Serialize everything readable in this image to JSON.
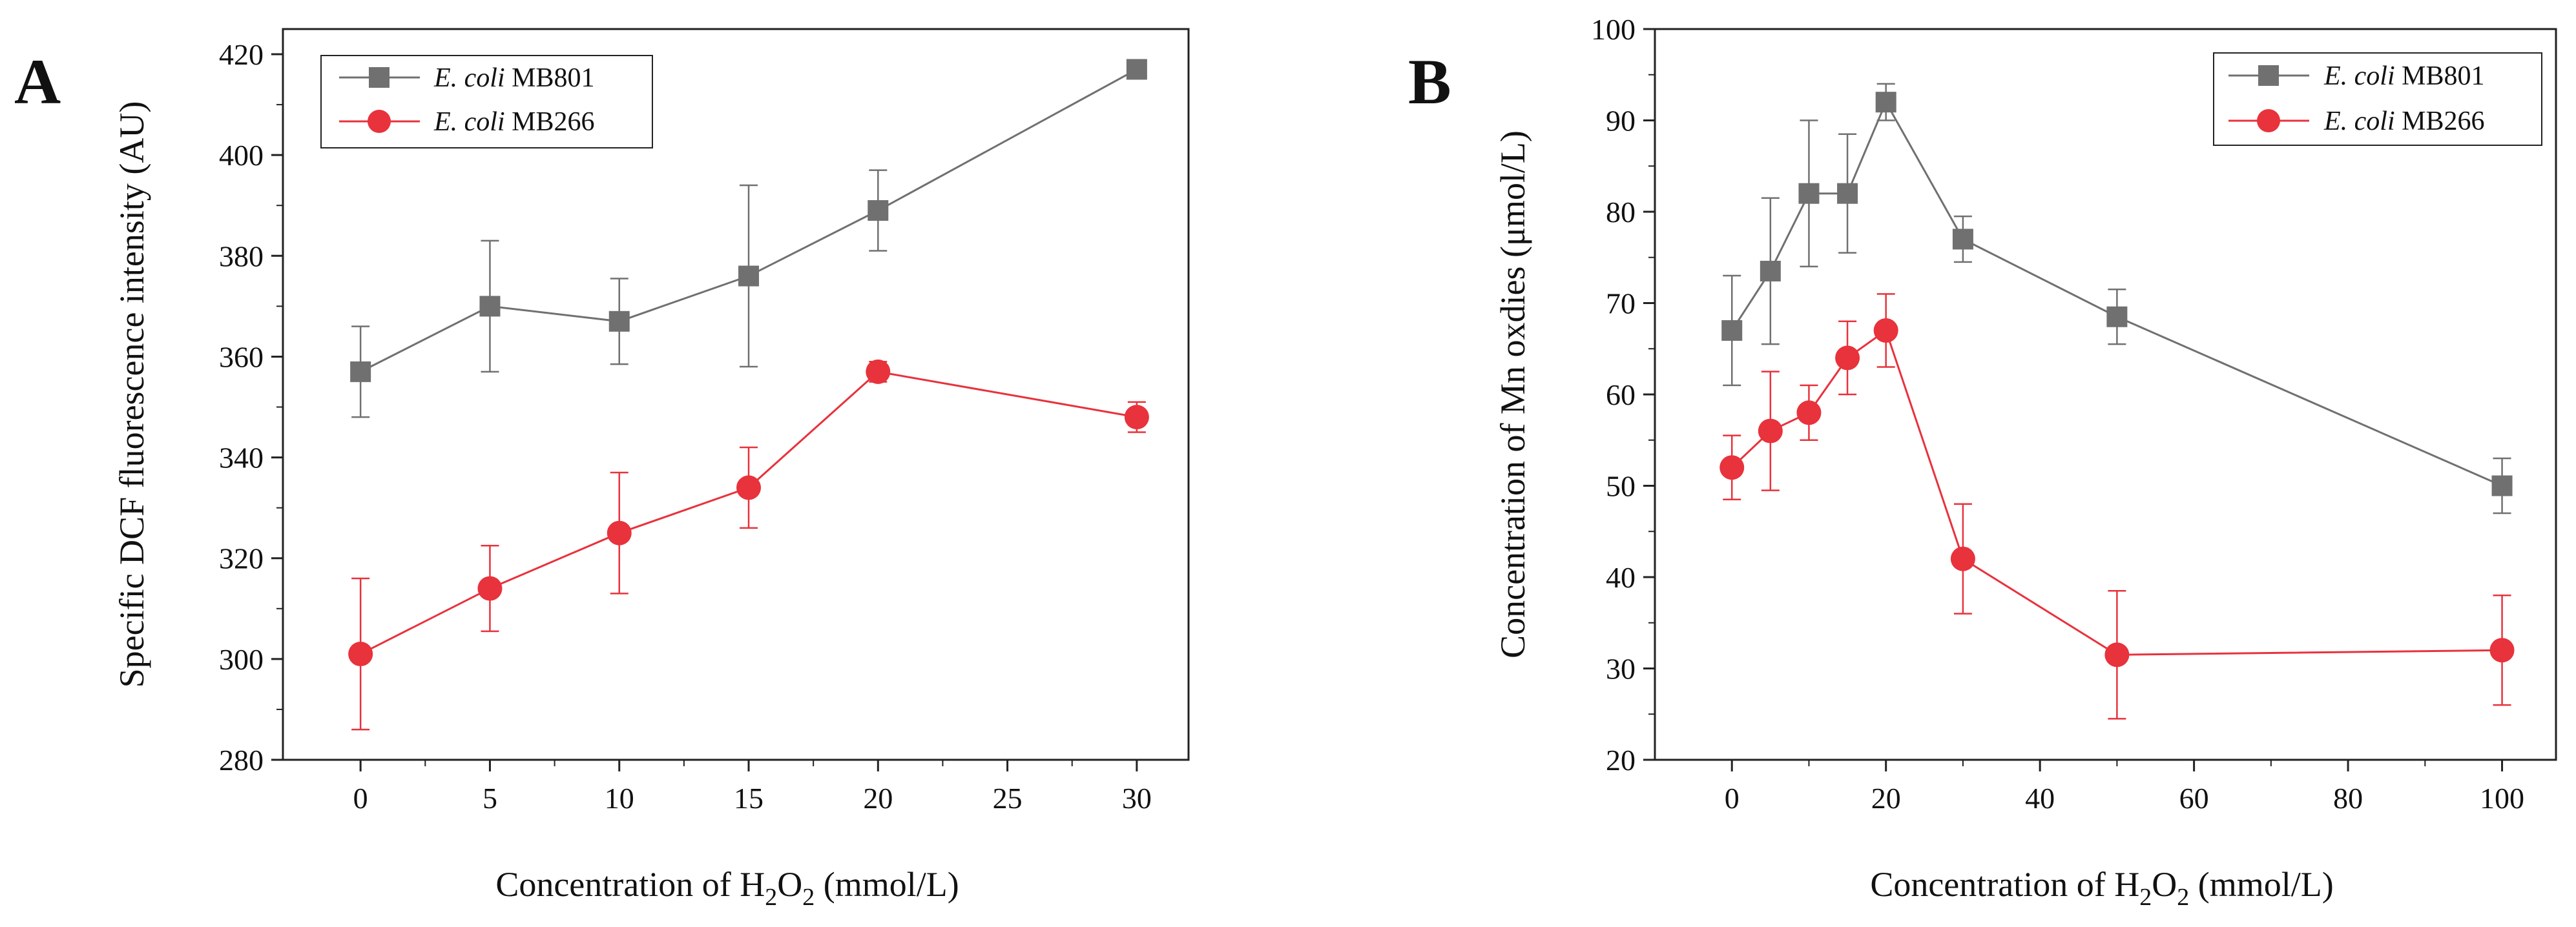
{
  "figure": {
    "panels": [
      "A",
      "B"
    ]
  },
  "chart_data": [
    {
      "type": "line",
      "panel_label": "A",
      "xlabel_prefix": "Concentration of H",
      "xlabel_sub1": "2",
      "xlabel_mid": "O",
      "xlabel_sub2": "2",
      "xlabel_suffix": " (mmol/L)",
      "ylabel": "Specific DCF fluorescence intensity (AU)",
      "xlim": [
        -3,
        32
      ],
      "ylim": [
        280,
        425
      ],
      "xticks": [
        0,
        5,
        10,
        15,
        20,
        25,
        30
      ],
      "yticks": [
        280,
        300,
        320,
        340,
        360,
        380,
        400,
        420
      ],
      "grid": false,
      "legend_position": "top-left",
      "series": [
        {
          "name_italic": "E. coli",
          "name_rest": " MB801",
          "color": "#707070",
          "marker": "square",
          "x": [
            0,
            5,
            10,
            15,
            20,
            30
          ],
          "y": [
            357,
            370,
            367,
            376,
            389,
            417
          ],
          "err": [
            9,
            13,
            8.5,
            18,
            8,
            0
          ]
        },
        {
          "name_italic": "E. coli",
          "name_rest": " MB266",
          "color": "#e8323c",
          "marker": "circle",
          "x": [
            0,
            5,
            10,
            15,
            20,
            30
          ],
          "y": [
            301,
            314,
            325,
            334,
            357,
            348
          ],
          "err": [
            15,
            8.5,
            12,
            8,
            2,
            3
          ]
        }
      ]
    },
    {
      "type": "line",
      "panel_label": "B",
      "xlabel_prefix": "Concentration of H",
      "xlabel_sub1": "2",
      "xlabel_mid": "O",
      "xlabel_sub2": "2",
      "xlabel_suffix": " (mmol/L)",
      "ylabel": "Concentration of Mn oxdies (μmol/L)",
      "xlim": [
        -10,
        107
      ],
      "ylim": [
        20,
        100
      ],
      "xticks": [
        0,
        20,
        40,
        60,
        80,
        100
      ],
      "yticks": [
        20,
        30,
        40,
        50,
        60,
        70,
        80,
        90,
        100
      ],
      "grid": false,
      "legend_position": "top-right",
      "series": [
        {
          "name_italic": "E. coli",
          "name_rest": " MB801",
          "color": "#707070",
          "marker": "square",
          "x": [
            0,
            5,
            10,
            15,
            20,
            30,
            50,
            100
          ],
          "y": [
            67,
            73.5,
            82,
            82,
            92,
            77,
            68.5,
            50
          ],
          "err": [
            6,
            8,
            8,
            6.5,
            2,
            2.5,
            3,
            3
          ]
        },
        {
          "name_italic": "E. coli",
          "name_rest": " MB266",
          "color": "#e8323c",
          "marker": "circle",
          "x": [
            0,
            5,
            10,
            15,
            20,
            30,
            50,
            100
          ],
          "y": [
            52,
            56,
            58,
            64,
            67,
            42,
            31.5,
            32
          ],
          "err": [
            3.5,
            6.5,
            3,
            4,
            4,
            6,
            7,
            6
          ]
        }
      ]
    }
  ]
}
